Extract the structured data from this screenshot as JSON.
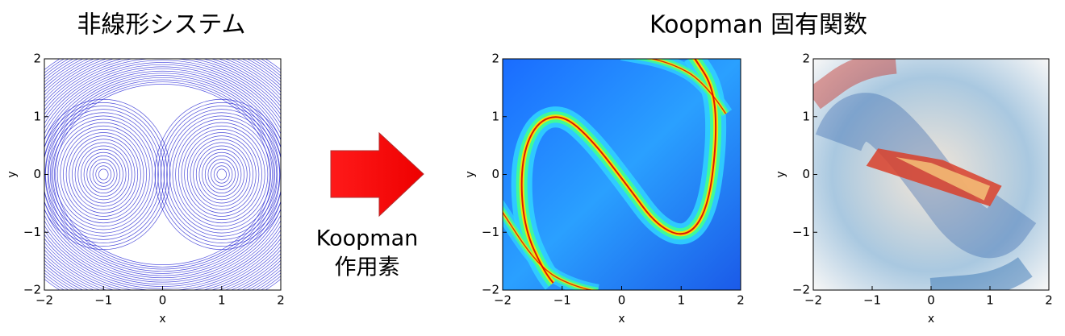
{
  "header": {
    "left_title": "非線形システム",
    "right_title": "Koopman 固有関数"
  },
  "arrow": {
    "line1": "Koopman",
    "line2": "作用素"
  },
  "chart_data": [
    {
      "type": "streamplot",
      "xlabel": "x",
      "ylabel": "y",
      "xlim": [
        -2,
        2
      ],
      "ylim": [
        -2,
        2
      ],
      "xticks": [
        {
          "value": -2,
          "label": "−2"
        },
        {
          "value": -1,
          "label": "−1"
        },
        0,
        1,
        2
      ],
      "yticks": [
        {
          "value": -2,
          "label": "−2"
        },
        {
          "value": -1,
          "label": "−1"
        },
        0,
        1,
        2
      ]
    },
    {
      "type": "heatmap",
      "xlabel": "x",
      "ylabel": "y",
      "xlim": [
        -2,
        2
      ],
      "ylim": [
        -2,
        2
      ],
      "xticks": [
        {
          "value": -2,
          "label": "−2"
        },
        {
          "value": -1,
          "label": "−1"
        },
        0,
        1,
        2
      ],
      "yticks": [
        {
          "value": -2,
          "label": "−2"
        },
        {
          "value": -1,
          "label": "−1"
        },
        0,
        1,
        2
      ]
    },
    {
      "type": "scatter",
      "xlabel": "x",
      "ylabel": "y",
      "xlim": [
        -2,
        2
      ],
      "ylim": [
        -2,
        2
      ],
      "xticks": [
        {
          "value": -2,
          "label": "−2"
        },
        {
          "value": -1,
          "label": "−1"
        },
        0,
        1,
        2
      ],
      "yticks": [
        {
          "value": -2,
          "label": "−2"
        },
        {
          "value": -1,
          "label": "−1"
        },
        0,
        1,
        2
      ]
    }
  ]
}
